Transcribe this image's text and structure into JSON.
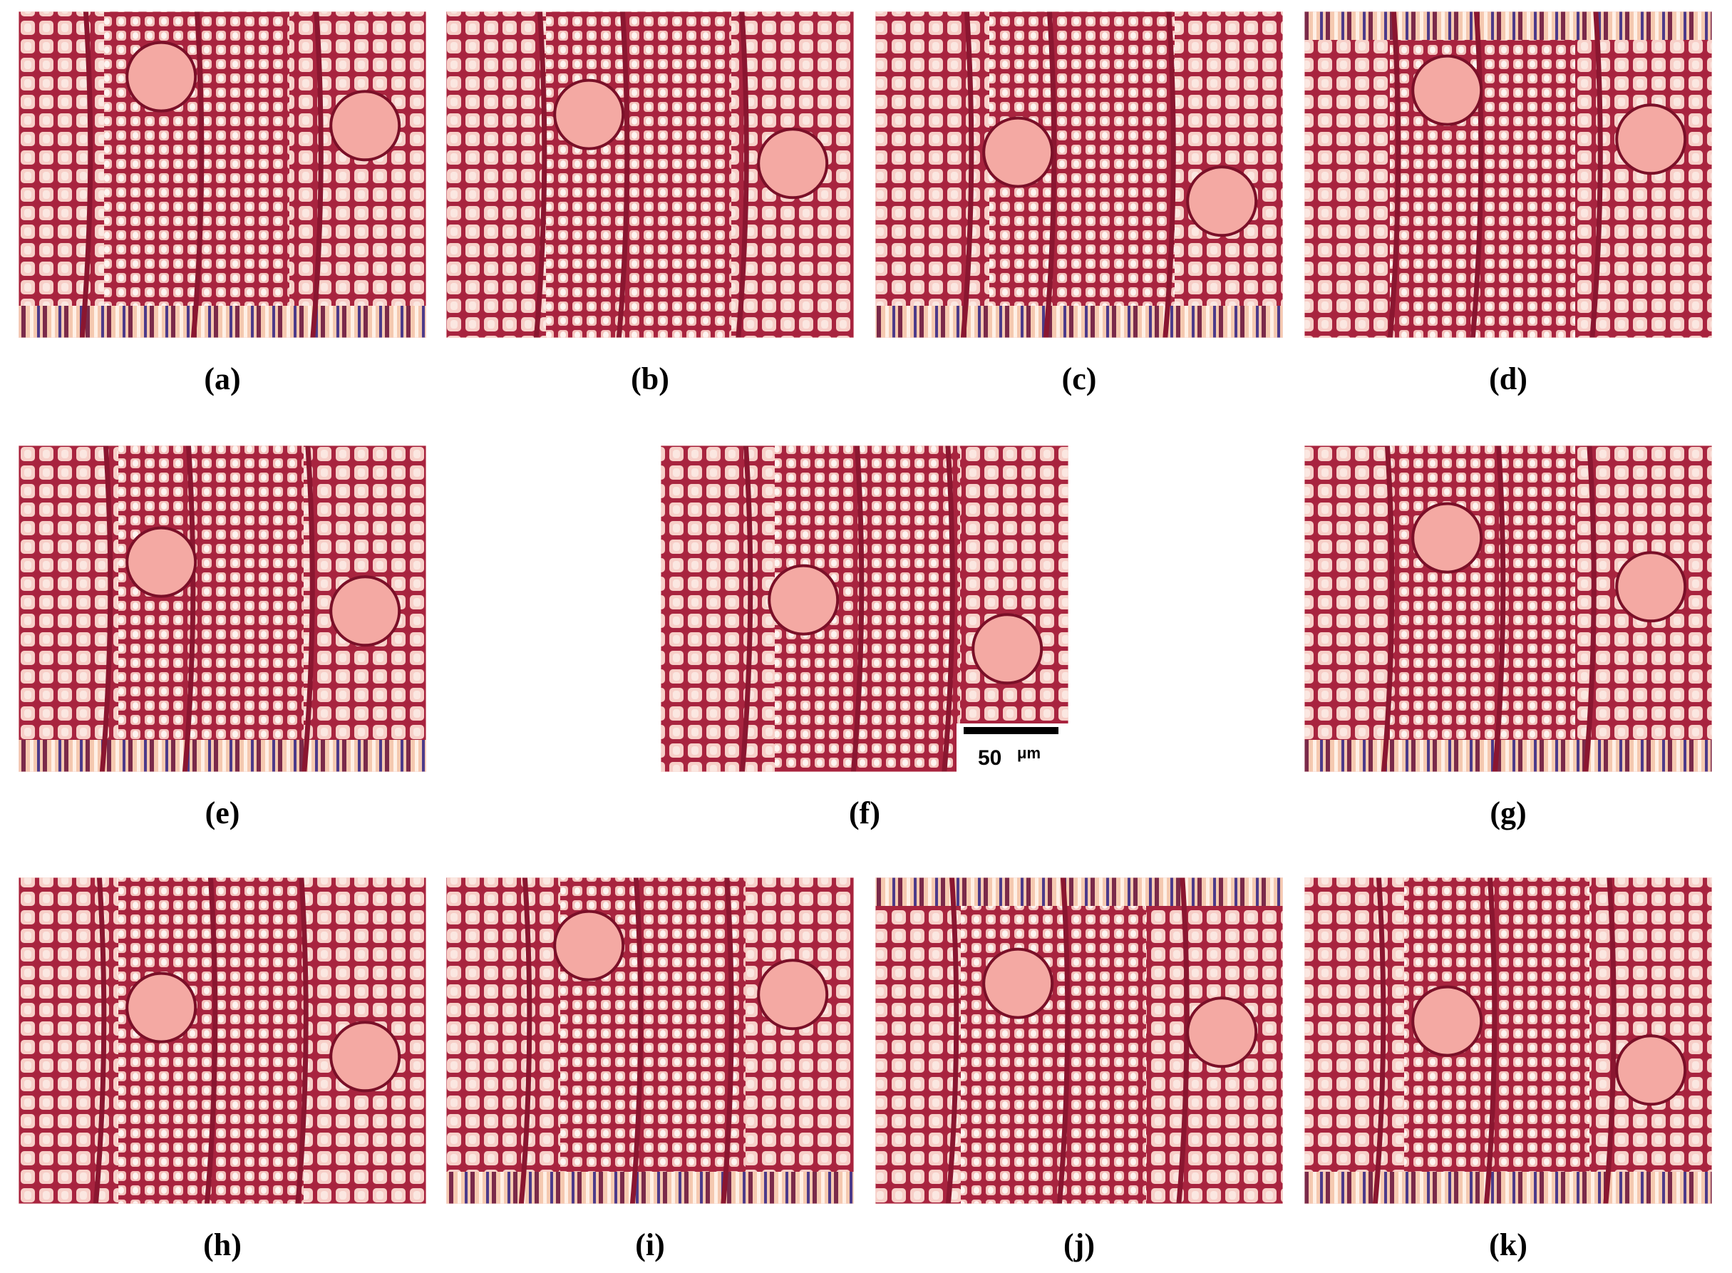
{
  "panels": [
    {
      "label": "(a)"
    },
    {
      "label": "(b)"
    },
    {
      "label": "(c)"
    },
    {
      "label": "(d)"
    },
    {
      "label": "(e)"
    },
    {
      "label": "(f)"
    },
    {
      "label": "(g)"
    },
    {
      "label": "(h)"
    },
    {
      "label": "(i)"
    },
    {
      "label": "(j)"
    },
    {
      "label": "(k)"
    }
  ],
  "scale_bar": {
    "value": 50,
    "unit": "μm"
  }
}
